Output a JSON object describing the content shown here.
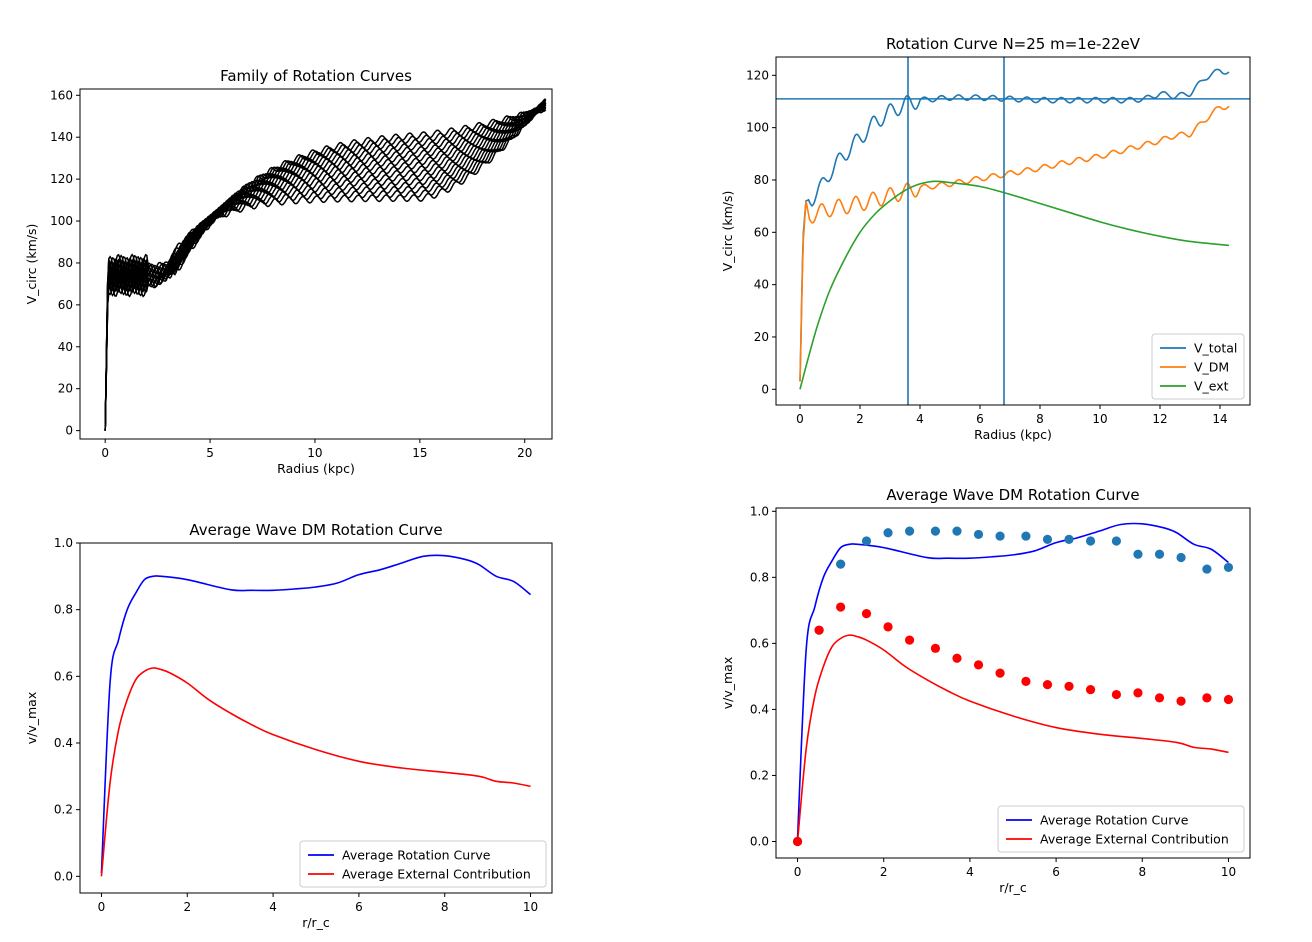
{
  "chart_data": [
    {
      "id": "family",
      "type": "line",
      "title": "Family of Rotation Curves",
      "xlabel": "Radius (kpc)",
      "ylabel": "V_circ (km/s)",
      "xlim": [
        -1.2,
        21.3
      ],
      "ylim": [
        -4,
        163
      ],
      "xticks": [
        0,
        5,
        10,
        15,
        20
      ],
      "yticks": [
        0,
        20,
        40,
        60,
        80,
        100,
        120,
        140,
        160
      ],
      "color": "#000000",
      "curve_count": 17,
      "plateau_range_kmps": [
        111,
        143
      ],
      "end_value_kmps": 153,
      "legend": null
    },
    {
      "id": "single",
      "type": "line",
      "title": "Rotation Curve N=25 m=1e-22eV",
      "xlabel": "Radius (kpc)",
      "ylabel": "V_circ (km/s)",
      "xlim": [
        -0.8,
        15.0
      ],
      "ylim": [
        -6,
        127
      ],
      "xticks": [
        0,
        2,
        4,
        6,
        8,
        10,
        12,
        14
      ],
      "yticks": [
        0,
        20,
        40,
        60,
        80,
        100,
        120
      ],
      "hline": 111,
      "vlines": [
        3.6,
        6.8
      ],
      "series": [
        {
          "name": "V_total",
          "color": "#1f77b4",
          "x": [
            0,
            0.1,
            0.2,
            0.4,
            0.7,
            1.0,
            1.5,
            2.0,
            2.5,
            3.0,
            3.5,
            4.0,
            4.5,
            5.0,
            6.0,
            7.0,
            8.0,
            9.0,
            10.0,
            11.0,
            11.5,
            12.0,
            12.5,
            13.0,
            13.5,
            14.0,
            14.3
          ],
          "y": [
            3,
            58,
            72,
            73,
            77,
            83,
            90,
            96,
            102,
            106,
            109,
            110.5,
            111,
            111.5,
            111.5,
            111,
            110.5,
            110.5,
            110.5,
            110.5,
            111,
            113,
            112,
            113,
            119,
            122,
            121
          ]
        },
        {
          "name": "V_DM",
          "color": "#ff7f0e",
          "x": [
            0,
            0.1,
            0.2,
            0.3,
            0.5,
            1,
            2,
            3,
            4,
            5,
            6,
            7,
            8,
            9,
            10,
            11,
            12,
            12.5,
            13,
            13.5,
            14,
            14.3
          ],
          "y": [
            3,
            55,
            72,
            66,
            67,
            69,
            71,
            74,
            77,
            78.5,
            80.5,
            82.5,
            84.5,
            87,
            89,
            92,
            95,
            97,
            97.5,
            103,
            108,
            108
          ]
        },
        {
          "name": "V_ext",
          "color": "#2ca02c",
          "x": [
            0,
            0.3,
            0.6,
            1,
            1.5,
            2,
            2.5,
            3,
            3.5,
            4,
            4.5,
            5,
            6,
            7,
            8,
            9,
            10,
            11,
            12,
            13,
            14.3
          ],
          "y": [
            0,
            13,
            25,
            38,
            50,
            60,
            67,
            72,
            76,
            78.5,
            79.5,
            79,
            77.5,
            74.5,
            71,
            67.5,
            64,
            61,
            58.5,
            56.5,
            55
          ]
        }
      ],
      "legend": "lower right"
    },
    {
      "id": "avg_left",
      "type": "line",
      "title": "Average Wave DM Rotation Curve",
      "xlabel": "r/r_c",
      "ylabel": "v/v_max",
      "xlim": [
        -0.5,
        10.5
      ],
      "ylim": [
        -0.05,
        1.0
      ],
      "xticks": [
        0,
        2,
        4,
        6,
        8,
        10
      ],
      "yticks": [
        "0.0",
        "0.2",
        "0.4",
        "0.6",
        "0.8",
        "1.0"
      ],
      "series": [
        {
          "name": "Average Rotation Curve",
          "color": "#0000ff",
          "x": [
            0,
            0.2,
            0.4,
            0.6,
            0.8,
            1.0,
            1.2,
            1.4,
            2.0,
            3.0,
            3.5,
            4.0,
            4.5,
            5.0,
            5.5,
            6.0,
            6.5,
            7.0,
            7.5,
            8.0,
            8.5,
            8.8,
            9.2,
            9.6,
            10.0
          ],
          "y": [
            0.01,
            0.58,
            0.71,
            0.8,
            0.85,
            0.89,
            0.9,
            0.9,
            0.89,
            0.86,
            0.858,
            0.858,
            0.862,
            0.868,
            0.88,
            0.905,
            0.92,
            0.94,
            0.96,
            0.962,
            0.95,
            0.935,
            0.9,
            0.885,
            0.845
          ]
        },
        {
          "name": "Average External Contribution",
          "color": "#ff0000",
          "x": [
            0,
            0.2,
            0.4,
            0.6,
            0.8,
            1.0,
            1.2,
            1.4,
            1.6,
            2.0,
            2.5,
            3.0,
            3.5,
            4.0,
            5.0,
            6.0,
            7.0,
            8.0,
            8.8,
            9.2,
            9.6,
            10.0
          ],
          "y": [
            0.0,
            0.28,
            0.44,
            0.53,
            0.59,
            0.615,
            0.625,
            0.62,
            0.61,
            0.58,
            0.53,
            0.49,
            0.455,
            0.425,
            0.38,
            0.345,
            0.325,
            0.312,
            0.3,
            0.285,
            0.28,
            0.27
          ]
        }
      ],
      "legend": "lower right"
    },
    {
      "id": "avg_right",
      "type": "line",
      "title": "Average Wave DM Rotation Curve",
      "xlabel": "r/r_c",
      "ylabel": "v/v_max",
      "xlim": [
        -0.5,
        10.5
      ],
      "ylim": [
        -0.05,
        1.01
      ],
      "xticks": [
        0,
        2,
        4,
        6,
        8,
        10
      ],
      "yticks": [
        "0.0",
        "0.2",
        "0.4",
        "0.6",
        "0.8",
        "1.0"
      ],
      "series": [
        {
          "name": "Average Rotation Curve",
          "color": "#0000ff",
          "x": [
            0,
            0.2,
            0.4,
            0.6,
            0.8,
            1.0,
            1.2,
            1.4,
            2.0,
            3.0,
            3.5,
            4.0,
            4.5,
            5.0,
            5.5,
            6.0,
            6.5,
            7.0,
            7.5,
            8.0,
            8.5,
            8.8,
            9.2,
            9.6,
            10.0
          ],
          "y": [
            0.01,
            0.58,
            0.71,
            0.8,
            0.85,
            0.89,
            0.9,
            0.9,
            0.89,
            0.86,
            0.858,
            0.858,
            0.862,
            0.868,
            0.88,
            0.905,
            0.92,
            0.94,
            0.96,
            0.962,
            0.95,
            0.935,
            0.9,
            0.885,
            0.845
          ]
        },
        {
          "name": "Average External Contribution",
          "color": "#ff0000",
          "x": [
            0,
            0.2,
            0.4,
            0.6,
            0.8,
            1.0,
            1.2,
            1.4,
            1.6,
            2.0,
            2.5,
            3.0,
            3.5,
            4.0,
            5.0,
            6.0,
            7.0,
            8.0,
            8.8,
            9.2,
            9.6,
            10.0
          ],
          "y": [
            0.0,
            0.28,
            0.44,
            0.53,
            0.59,
            0.615,
            0.625,
            0.62,
            0.61,
            0.58,
            0.53,
            0.49,
            0.455,
            0.425,
            0.38,
            0.345,
            0.325,
            0.312,
            0.3,
            0.285,
            0.28,
            0.27
          ]
        }
      ],
      "scatter": [
        {
          "name": "blue points",
          "color": "#1f77b4",
          "x": [
            0,
            0.5,
            1.0,
            1.6,
            2.1,
            2.6,
            3.2,
            3.7,
            4.2,
            4.7,
            5.3,
            5.8,
            6.3,
            6.8,
            7.4,
            7.9,
            8.4,
            8.9,
            9.5,
            10.0
          ],
          "y": [
            0.0,
            0.64,
            0.84,
            0.91,
            0.935,
            0.94,
            0.94,
            0.94,
            0.93,
            0.925,
            0.925,
            0.915,
            0.915,
            0.91,
            0.91,
            0.87,
            0.87,
            0.86,
            0.825,
            0.83
          ]
        },
        {
          "name": "red points",
          "color": "#ff0000",
          "x": [
            0,
            0.5,
            1.0,
            1.6,
            2.1,
            2.6,
            3.2,
            3.7,
            4.2,
            4.7,
            5.3,
            5.8,
            6.3,
            6.8,
            7.4,
            7.9,
            8.4,
            8.9,
            9.5,
            10.0
          ],
          "y": [
            0.0,
            0.64,
            0.71,
            0.69,
            0.65,
            0.61,
            0.585,
            0.555,
            0.535,
            0.51,
            0.485,
            0.475,
            0.47,
            0.46,
            0.445,
            0.45,
            0.435,
            0.425,
            0.435,
            0.43
          ]
        }
      ],
      "legend": "lower right"
    }
  ]
}
